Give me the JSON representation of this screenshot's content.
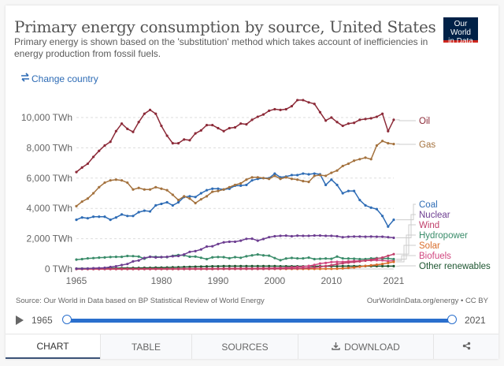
{
  "header": {
    "title": "Primary energy consumption by source, United States",
    "subtitle": "Primary energy is shown based on the 'substitution' method which takes account of inefficiencies in energy production from fossil fuels.",
    "logo_line1": "Our World",
    "logo_line2": "in Data",
    "change_country": "Change country"
  },
  "footer": {
    "source": "Source: Our World in Data based on BP Statistical Review of World Energy",
    "license": "OurWorldInData.org/energy • CC BY"
  },
  "timeline": {
    "start_year": "1965",
    "end_year": "2021"
  },
  "tabs": [
    {
      "label": "CHART",
      "active": true
    },
    {
      "label": "TABLE"
    },
    {
      "label": "SOURCES"
    },
    {
      "label": "DOWNLOAD"
    },
    {
      "label": ""
    }
  ],
  "chart_data": {
    "type": "line",
    "title": "Primary energy consumption by source, United States",
    "xlabel": "",
    "ylabel": "",
    "x_start": 1965,
    "x_end": 2021,
    "xticks": [
      "1965",
      "1980",
      "1990",
      "2000",
      "2010",
      "2021"
    ],
    "xtick_values": [
      1965,
      1980,
      1990,
      2000,
      2010,
      2021
    ],
    "yticks": [
      "0 TWh",
      "2,000 TWh",
      "4,000 TWh",
      "6,000 TWh",
      "8,000 TWh",
      "10,000 TWh"
    ],
    "ytick_values": [
      0,
      2000,
      4000,
      6000,
      8000,
      10000
    ],
    "ylim": [
      0,
      11300
    ],
    "grid": "horizontal dashed",
    "legend": "right, inline labels",
    "series": [
      {
        "name": "Oil",
        "color": "#8c2a38",
        "values": [
          6400,
          6700,
          6950,
          7400,
          7800,
          8150,
          8400,
          9100,
          9600,
          9250,
          9050,
          9700,
          10250,
          10500,
          10250,
          9450,
          8800,
          8300,
          8300,
          8550,
          8500,
          8950,
          9150,
          9500,
          9500,
          9300,
          9100,
          9300,
          9350,
          9600,
          9550,
          9850,
          10050,
          10200,
          10450,
          10550,
          10500,
          10550,
          10750,
          11150,
          11150,
          11000,
          10900,
          10350,
          9800,
          10000,
          9700,
          9450,
          9600,
          9650,
          9850,
          9900,
          9950,
          10050,
          10250,
          9100,
          9850
        ]
      },
      {
        "name": "Gas",
        "color": "#a4723e",
        "values": [
          4150,
          4450,
          4650,
          5000,
          5400,
          5700,
          5850,
          5900,
          5850,
          5700,
          5250,
          5350,
          5250,
          5250,
          5400,
          5300,
          5200,
          4900,
          4550,
          4800,
          4650,
          4350,
          4600,
          4800,
          5100,
          5150,
          5250,
          5400,
          5550,
          5650,
          5900,
          6050,
          6050,
          6000,
          5950,
          6150,
          5950,
          6050,
          5950,
          5900,
          5800,
          5750,
          6150,
          6200,
          6150,
          6350,
          6500,
          6800,
          6950,
          7150,
          7250,
          7350,
          7250,
          8150,
          8450,
          8300,
          8250
        ]
      },
      {
        "name": "Coal",
        "color": "#2e6cb5",
        "values": [
          3250,
          3400,
          3350,
          3450,
          3450,
          3450,
          3250,
          3400,
          3600,
          3500,
          3500,
          3750,
          3850,
          3800,
          4200,
          4300,
          4400,
          4200,
          4400,
          4750,
          4800,
          4750,
          5000,
          5200,
          5300,
          5300,
          5250,
          5300,
          5500,
          5500,
          5550,
          5850,
          5950,
          6000,
          6000,
          6300,
          6050,
          6100,
          6200,
          6200,
          6300,
          6250,
          6300,
          6250,
          5550,
          5900,
          5550,
          5000,
          5150,
          5150,
          4550,
          4200,
          4050,
          3950,
          3500,
          2800,
          3250
        ]
      },
      {
        "name": "Nuclear",
        "color": "#6d3e91",
        "values": [
          20,
          20,
          30,
          50,
          60,
          80,
          130,
          180,
          260,
          330,
          500,
          560,
          730,
          800,
          760,
          780,
          800,
          840,
          860,
          960,
          1130,
          1180,
          1290,
          1480,
          1500,
          1650,
          1760,
          1800,
          1800,
          1870,
          1990,
          2000,
          1870,
          1980,
          2100,
          2160,
          2190,
          2200,
          2160,
          2200,
          2190,
          2190,
          2210,
          2210,
          2190,
          2190,
          2160,
          2100,
          2130,
          2140,
          2140,
          2130,
          2140,
          2130,
          2130,
          2100,
          2060
        ]
      },
      {
        "name": "Wind",
        "color": "#c03f6a",
        "values": [
          0,
          0,
          0,
          0,
          0,
          0,
          0,
          0,
          0,
          0,
          0,
          0,
          0,
          0,
          0,
          0,
          0,
          0,
          0,
          0,
          0,
          0,
          0,
          0,
          0,
          5,
          5,
          5,
          5,
          5,
          5,
          5,
          5,
          5,
          10,
          15,
          20,
          30,
          30,
          40,
          50,
          70,
          90,
          140,
          190,
          250,
          320,
          380,
          420,
          460,
          500,
          550,
          600,
          680,
          750,
          870,
          980
        ]
      },
      {
        "name": "Hydropower",
        "color": "#3a8c6a",
        "values": [
          620,
          650,
          700,
          720,
          750,
          760,
          790,
          800,
          800,
          860,
          850,
          820,
          680,
          810,
          800,
          790,
          780,
          870,
          920,
          900,
          810,
          820,
          740,
          650,
          770,
          790,
          780,
          710,
          780,
          740,
          840,
          900,
          960,
          900,
          880,
          720,
          580,
          690,
          730,
          700,
          700,
          750,
          650,
          670,
          690,
          670,
          820,
          700,
          690,
          680,
          650,
          650,
          700,
          720,
          690,
          700,
          650
        ]
      },
      {
        "name": "Solar",
        "color": "#d96d2b",
        "values": [
          0,
          0,
          0,
          0,
          0,
          0,
          0,
          0,
          0,
          0,
          0,
          0,
          0,
          0,
          0,
          0,
          0,
          0,
          0,
          0,
          0,
          0,
          0,
          0,
          0,
          5,
          5,
          5,
          5,
          5,
          5,
          5,
          5,
          5,
          5,
          5,
          5,
          5,
          5,
          5,
          5,
          5,
          5,
          5,
          10,
          10,
          20,
          40,
          70,
          100,
          150,
          200,
          240,
          280,
          330,
          400,
          470
        ]
      },
      {
        "name": "Biofuels",
        "color": "#d1467f",
        "values": [
          0,
          0,
          0,
          0,
          0,
          0,
          0,
          0,
          0,
          0,
          0,
          0,
          0,
          0,
          0,
          0,
          5,
          10,
          15,
          20,
          25,
          25,
          25,
          25,
          25,
          25,
          30,
          35,
          40,
          40,
          45,
          35,
          45,
          50,
          50,
          60,
          70,
          80,
          110,
          130,
          150,
          200,
          270,
          360,
          400,
          460,
          470,
          470,
          500,
          520,
          540,
          560,
          570,
          580,
          570,
          520,
          560
        ]
      },
      {
        "name": "Other renewables",
        "color": "#1e5631",
        "values": [
          30,
          30,
          30,
          40,
          40,
          40,
          50,
          50,
          60,
          60,
          70,
          70,
          80,
          80,
          90,
          90,
          100,
          110,
          120,
          130,
          140,
          150,
          160,
          170,
          180,
          180,
          190,
          190,
          190,
          190,
          190,
          190,
          190,
          190,
          190,
          190,
          180,
          180,
          180,
          180,
          180,
          180,
          180,
          180,
          180,
          180,
          180,
          190,
          190,
          190,
          190,
          190,
          190,
          190,
          190,
          190,
          190
        ]
      }
    ]
  }
}
